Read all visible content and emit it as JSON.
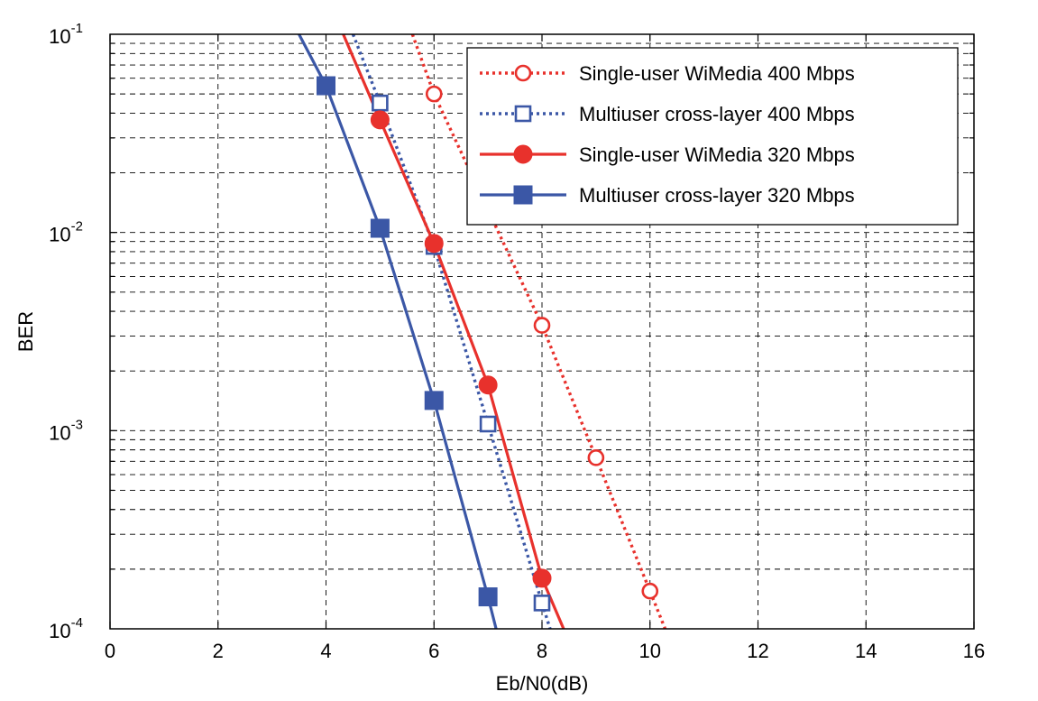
{
  "chart_data": {
    "type": "line",
    "title": "",
    "xlabel": "Eb/N0(dB)",
    "ylabel": "BER",
    "xlim": [
      0,
      16
    ],
    "ylim": [
      0.0001,
      0.1
    ],
    "yscale": "log",
    "x_ticks": [
      0,
      2,
      4,
      6,
      8,
      10,
      12,
      14,
      16
    ],
    "x_tick_labels": [
      "0",
      "2",
      "4",
      "6",
      "8",
      "10",
      "12",
      "14",
      "16"
    ],
    "y_ticks": [
      {
        "value": 0.1,
        "base": "10",
        "exp": "-1"
      },
      {
        "value": 0.01,
        "base": "10",
        "exp": "-2"
      },
      {
        "value": 0.001,
        "base": "10",
        "exp": "-3"
      },
      {
        "value": 0.0001,
        "base": "10",
        "exp": "-4"
      }
    ],
    "grid": true,
    "legend_position": "top-right",
    "series": [
      {
        "name": "Single-user WiMedia 400 Mbps",
        "color": "#e8312c",
        "line_style": "dotted",
        "marker": "circle-open",
        "x": [
          6,
          8,
          9,
          10
        ],
        "y": [
          0.05,
          0.0034,
          0.00073,
          0.000155
        ],
        "curve_x": [
          5.6,
          6,
          7,
          8,
          9,
          10,
          10.28
        ],
        "curve_y": [
          0.1,
          0.05,
          0.013,
          0.0034,
          0.00073,
          0.000155,
          0.0001
        ]
      },
      {
        "name": "Multiuser cross-layer 400 Mbps",
        "color": "#3b57a6",
        "line_style": "dotted",
        "marker": "square-open",
        "x": [
          5,
          6,
          7,
          8
        ],
        "y": [
          0.045,
          0.0085,
          0.00108,
          0.000135
        ],
        "curve_x": [
          4.5,
          5,
          6,
          7,
          8,
          8.15
        ],
        "curve_y": [
          0.1,
          0.045,
          0.0085,
          0.00108,
          0.000135,
          0.0001
        ]
      },
      {
        "name": "Single-user WiMedia 320 Mbps",
        "color": "#e8312c",
        "line_style": "solid",
        "marker": "circle-filled",
        "x": [
          5,
          6,
          7,
          8
        ],
        "y": [
          0.037,
          0.0088,
          0.0017,
          0.00018
        ],
        "curve_x": [
          4.32,
          5,
          6,
          7,
          8,
          8.4
        ],
        "curve_y": [
          0.1,
          0.037,
          0.0088,
          0.0017,
          0.00018,
          0.0001
        ]
      },
      {
        "name": "Multiuser cross-layer 320 Mbps",
        "color": "#3b57a6",
        "line_style": "solid",
        "marker": "square-filled",
        "x": [
          4,
          5,
          6,
          7
        ],
        "y": [
          0.055,
          0.0105,
          0.00142,
          0.000145
        ],
        "curve_x": [
          3.5,
          4,
          5,
          6,
          7,
          7.15
        ],
        "curve_y": [
          0.1,
          0.055,
          0.0105,
          0.00142,
          0.000145,
          0.0001
        ]
      }
    ]
  }
}
